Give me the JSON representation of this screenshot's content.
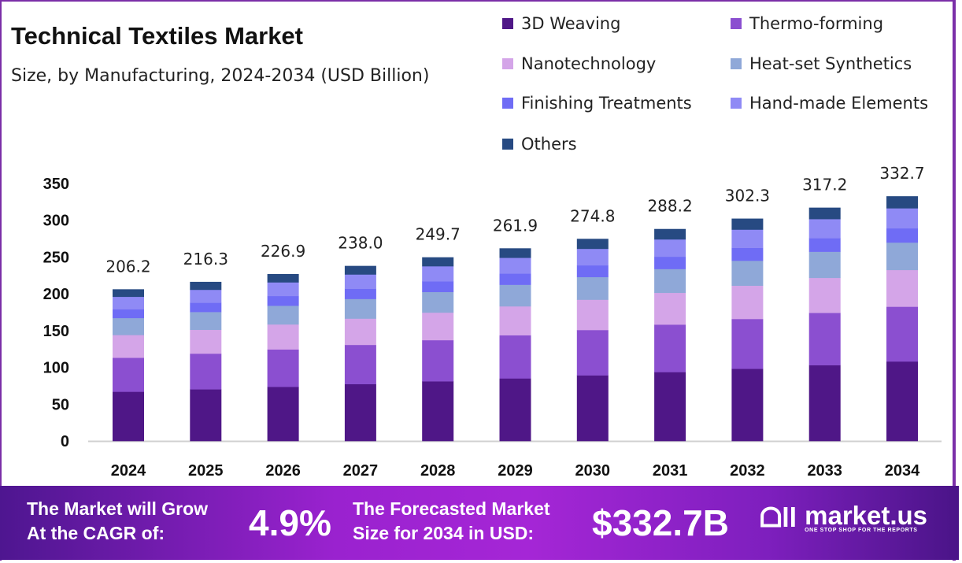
{
  "chart_data": {
    "type": "bar",
    "stacked": true,
    "title": "Technical Textiles Market",
    "subtitle": "Size, by Manufacturing, 2024-2034 (USD Billion)",
    "categories": [
      "2024",
      "2025",
      "2026",
      "2027",
      "2028",
      "2029",
      "2030",
      "2031",
      "2032",
      "2033",
      "2034"
    ],
    "totals": [
      "206.2",
      "216.3",
      "226.9",
      "238.0",
      "249.7",
      "261.9",
      "274.8",
      "288.2",
      "302.3",
      "317.2",
      "332.7"
    ],
    "series": [
      {
        "name": "3D Weaving",
        "color": "#4f1787",
        "values": [
          67.0,
          70.3,
          73.7,
          77.4,
          81.2,
          85.1,
          89.3,
          93.7,
          98.2,
          103.1,
          108.1
        ]
      },
      {
        "name": "Thermo-forming",
        "color": "#8b4fd0",
        "values": [
          46.2,
          48.5,
          50.8,
          53.3,
          55.9,
          58.7,
          61.6,
          64.6,
          67.7,
          71.1,
          74.5
        ]
      },
      {
        "name": "Nanotechnology",
        "color": "#d4a5e8",
        "values": [
          30.9,
          32.4,
          34.0,
          35.7,
          37.5,
          39.3,
          41.2,
          43.2,
          45.3,
          47.6,
          49.9
        ]
      },
      {
        "name": "Heat-set Synthetics",
        "color": "#8fa8d8",
        "values": [
          23.1,
          24.2,
          25.4,
          26.7,
          28.0,
          29.3,
          30.8,
          32.3,
          33.9,
          35.5,
          37.3
        ]
      },
      {
        "name": "Finishing Treatments",
        "color": "#6f6cf5",
        "values": [
          12.0,
          12.5,
          13.2,
          13.8,
          14.5,
          15.2,
          15.9,
          16.7,
          17.5,
          18.4,
          19.3
        ]
      },
      {
        "name": "Hand-made Elements",
        "color": "#8f8af5",
        "values": [
          16.9,
          17.7,
          18.6,
          19.5,
          20.5,
          21.5,
          22.5,
          23.6,
          24.8,
          26.0,
          27.3
        ]
      },
      {
        "name": "Others",
        "color": "#274a82",
        "values": [
          10.1,
          10.7,
          11.2,
          11.6,
          12.1,
          12.8,
          13.5,
          14.1,
          14.9,
          15.5,
          16.3
        ]
      }
    ],
    "yticks": [
      "0",
      "50",
      "100",
      "150",
      "200",
      "250",
      "300",
      "350"
    ],
    "ylim": [
      0,
      350
    ],
    "grid": false,
    "legend_position": "top-right"
  },
  "banner": {
    "cagr_text_1": "The Market will Grow",
    "cagr_text_2": "At the CAGR of:",
    "cagr_value": "4.9%",
    "forecast_text_1": "The Forecasted Market",
    "forecast_text_2": "Size for 2034 in USD:",
    "forecast_value": "$332.7B",
    "logo_name": "market.us",
    "logo_tagline": "ONE STOP SHOP FOR THE REPORTS"
  }
}
